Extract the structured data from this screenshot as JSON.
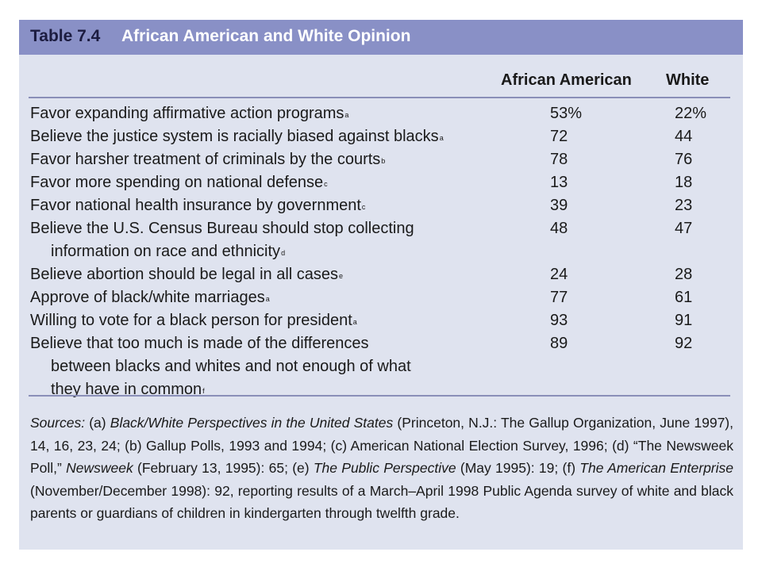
{
  "table": {
    "number": "Table 7.4",
    "title": "African American and White Opinion",
    "columns": [
      "African American",
      "White"
    ],
    "rows": [
      {
        "label": "Favor expanding affirmative action programs",
        "note": "a",
        "aa": "53%",
        "white": "22%"
      },
      {
        "label": "Believe the justice system is racially biased against blacks",
        "note": "a",
        "aa": "72",
        "white": "44"
      },
      {
        "label": "Favor harsher treatment of criminals by the courts",
        "note": "b",
        "aa": "78",
        "white": "76"
      },
      {
        "label": "Favor more spending on national defense",
        "note": "c",
        "aa": "13",
        "white": "18"
      },
      {
        "label": "Favor national health insurance by government",
        "note": "c",
        "aa": "39",
        "white": "23"
      },
      {
        "label": "Believe the U.S. Census Bureau should stop collecting",
        "label_cont": [
          "information on race and ethnicity"
        ],
        "note": "d",
        "aa": "48",
        "white": "47"
      },
      {
        "label": "Believe abortion should be legal in all cases",
        "note": "e",
        "aa": "24",
        "white": "28"
      },
      {
        "label": "Approve of black/white marriages",
        "note": "a",
        "aa": "77",
        "white": "61"
      },
      {
        "label": "Willing to vote for a black person for president",
        "note": "a",
        "aa": "93",
        "white": "91"
      },
      {
        "label": "Believe that too much is made of the differences",
        "label_cont": [
          "between blacks and whites and not enough of what",
          "they have in common"
        ],
        "note": "f",
        "aa": "89",
        "white": "92"
      }
    ]
  },
  "sources": {
    "prefix": "Sources:",
    "a_pre": " (a) ",
    "a_title": "Black/White Perspectives in the United States",
    "a_rest": " (Princeton, N.J.: The Gallup Organization, June 1997), 14, 16, 23, 24; (b) Gallup Polls, 1993 and 1994; (c) American National Election Survey, 1996; (d) “The Newsweek Poll,” ",
    "d_title": "Newsweek",
    "d_rest": " (February 13, 1995): 65; (e) ",
    "e_title": "The Public Perspective",
    "e_rest": " (May 1995): 19; (f) ",
    "f_title": "The American Enterprise",
    "f_rest": " (November/December 1998): 92, reporting results of a March–April 1998 Public Agenda survey of white and black parents or guardians of children in kindergarten through twelfth grade."
  }
}
